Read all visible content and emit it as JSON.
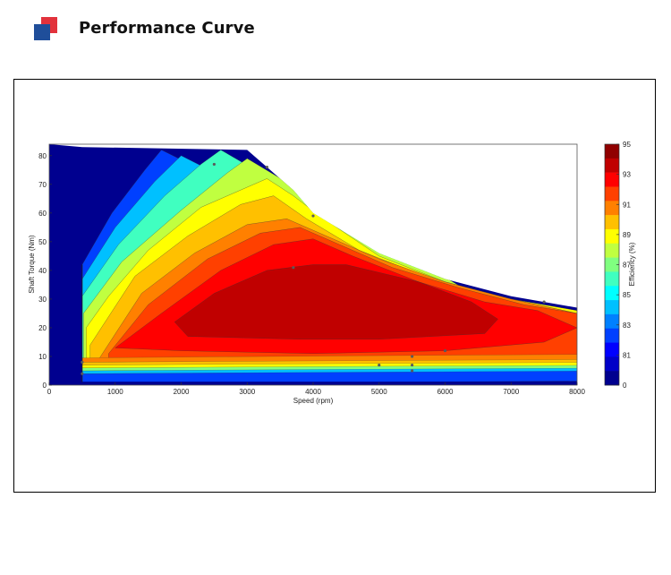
{
  "header": {
    "title": "Performance Curve",
    "logo_colors": {
      "front": "#1f4e9a",
      "back": "#e2323c"
    }
  },
  "chart_data": {
    "type": "heatmap",
    "subtype": "filled-contour",
    "title": "",
    "xlabel": "Speed  (rpm)",
    "ylabel": "Shaft Torque  (Nm)",
    "colorbar_label": "Efficiency (%)",
    "xlim": [
      0,
      8000
    ],
    "ylim": [
      0,
      84
    ],
    "x_ticks": [
      0,
      1000,
      2000,
      3000,
      4000,
      5000,
      6000,
      7000,
      8000
    ],
    "y_ticks": [
      0,
      10,
      20,
      30,
      40,
      50,
      60,
      70,
      80
    ],
    "colorbar_ticks": [
      "95",
      "93",
      "91",
      "89",
      "87",
      "85",
      "83",
      "81",
      "0"
    ],
    "levels": [
      0,
      80,
      81,
      82,
      83,
      84,
      85,
      86,
      87,
      88,
      89,
      90,
      91,
      92,
      93,
      94,
      95
    ],
    "level_colors": [
      "#00008f",
      "#0000c8",
      "#0000ff",
      "#0040ff",
      "#0080ff",
      "#00c0ff",
      "#00ffff",
      "#40ffc0",
      "#80ff80",
      "#c0ff40",
      "#ffff00",
      "#ffc000",
      "#ff8000",
      "#ff4000",
      "#ff0000",
      "#c00000",
      "#900000"
    ],
    "max_torque_envelope": [
      [
        0,
        84
      ],
      [
        500,
        83
      ],
      [
        3000,
        82
      ],
      [
        3700,
        68
      ],
      [
        4000,
        60
      ],
      [
        5000,
        46
      ],
      [
        6000,
        37
      ],
      [
        7000,
        31
      ],
      [
        8000,
        27
      ]
    ],
    "contours": [
      {
        "level": 82,
        "points": [
          [
            500,
            42
          ],
          [
            950,
            60
          ],
          [
            1450,
            75
          ],
          [
            1700,
            82
          ]
        ]
      },
      {
        "level": 84,
        "points": [
          [
            500,
            37
          ],
          [
            1000,
            55
          ],
          [
            1600,
            71
          ],
          [
            2000,
            80
          ]
        ]
      },
      {
        "level": 86,
        "points": [
          [
            500,
            31
          ],
          [
            1050,
            49
          ],
          [
            1750,
            66
          ],
          [
            2300,
            77
          ],
          [
            2600,
            82
          ]
        ]
      },
      {
        "level": 88,
        "points": [
          [
            520,
            25
          ],
          [
            1100,
            43
          ],
          [
            2000,
            61
          ],
          [
            2700,
            74
          ],
          [
            3000,
            79
          ]
        ]
      },
      {
        "level": 89,
        "points": [
          [
            560,
            20
          ],
          [
            900,
            31
          ],
          [
            1500,
            47
          ],
          [
            2300,
            62
          ],
          [
            3300,
            72
          ],
          [
            3700,
            66
          ],
          [
            4100,
            59
          ],
          [
            5000,
            45
          ],
          [
            6000,
            36
          ],
          [
            7000,
            30
          ],
          [
            8000,
            26
          ]
        ]
      },
      {
        "level": 90,
        "points": [
          [
            620,
            14
          ],
          [
            1300,
            38
          ],
          [
            2100,
            52
          ],
          [
            2900,
            63
          ],
          [
            3400,
            66
          ],
          [
            3900,
            58
          ],
          [
            4700,
            47
          ],
          [
            5800,
            37
          ],
          [
            7000,
            30
          ],
          [
            8000,
            25
          ]
        ]
      },
      {
        "level": 91,
        "points": [
          [
            750,
            9
          ],
          [
            1400,
            32
          ],
          [
            2200,
            46
          ],
          [
            3000,
            56
          ],
          [
            3600,
            58
          ],
          [
            4200,
            52
          ],
          [
            5000,
            44
          ],
          [
            6000,
            36
          ],
          [
            7000,
            30
          ],
          [
            8000,
            25
          ]
        ]
      },
      {
        "level": 92,
        "points": [
          [
            900,
            11
          ],
          [
            1500,
            28
          ],
          [
            2400,
            44
          ],
          [
            3200,
            53
          ],
          [
            3800,
            55
          ],
          [
            4400,
            49
          ],
          [
            5200,
            41
          ],
          [
            6200,
            34
          ],
          [
            7200,
            28
          ],
          [
            8000,
            25
          ]
        ]
      },
      {
        "level": 93,
        "points": [
          [
            1000,
            13
          ],
          [
            1700,
            25
          ],
          [
            2600,
            40
          ],
          [
            3400,
            49
          ],
          [
            4000,
            51
          ],
          [
            4600,
            45
          ],
          [
            5600,
            36
          ],
          [
            6600,
            29
          ],
          [
            7400,
            26
          ],
          [
            8000,
            20
          ],
          [
            7500,
            15
          ],
          [
            6000,
            12
          ],
          [
            4000,
            11
          ],
          [
            2000,
            12
          ],
          [
            1000,
            13
          ]
        ]
      },
      {
        "level": 94,
        "points": [
          [
            1900,
            22
          ],
          [
            2500,
            32
          ],
          [
            3300,
            40
          ],
          [
            4000,
            42
          ],
          [
            4500,
            42
          ],
          [
            5600,
            36
          ],
          [
            6400,
            29
          ],
          [
            6800,
            23
          ],
          [
            6600,
            18
          ],
          [
            5000,
            16
          ],
          [
            3800,
            16
          ],
          [
            2100,
            17
          ],
          [
            1900,
            22
          ]
        ]
      }
    ],
    "markers": [
      [
        2500,
        77
      ],
      [
        3300,
        76
      ],
      [
        4000,
        59
      ],
      [
        3700,
        41
      ],
      [
        7500,
        29
      ],
      [
        6000,
        12
      ],
      [
        5500,
        10
      ],
      [
        5000,
        7
      ],
      [
        5500,
        7
      ],
      [
        5500,
        5
      ],
      [
        500,
        4
      ],
      [
        500,
        8
      ]
    ]
  }
}
